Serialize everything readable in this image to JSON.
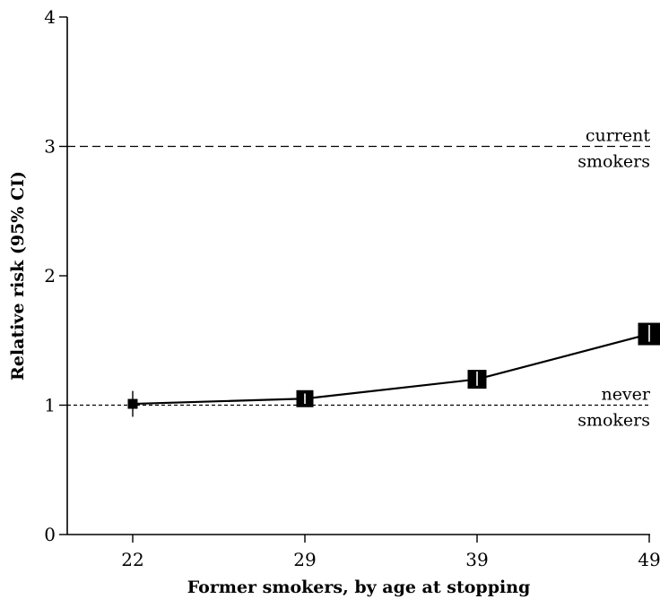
{
  "chart_data": {
    "type": "line",
    "xlabel": "Former smokers, by age at stopping",
    "ylabel": "Relative risk (95% CI)",
    "categories": [
      "22",
      "29",
      "39",
      "49"
    ],
    "yticks": [
      "0",
      "1",
      "2",
      "3",
      "4"
    ],
    "ylim": [
      0,
      4
    ],
    "grid": false,
    "series": [
      {
        "values": [
          1.01,
          1.05,
          1.2,
          1.55
        ],
        "ci_low": [
          0.91,
          1.01,
          1.15,
          1.49
        ],
        "ci_high": [
          1.11,
          1.09,
          1.26,
          1.62
        ]
      }
    ],
    "reference_lines": [
      {
        "value": 3,
        "label_line1": "current",
        "label_line2": "smokers",
        "style": "dashed"
      },
      {
        "value": 1,
        "label_line1": "never",
        "label_line2": "smokers",
        "style": "dotted"
      }
    ]
  }
}
